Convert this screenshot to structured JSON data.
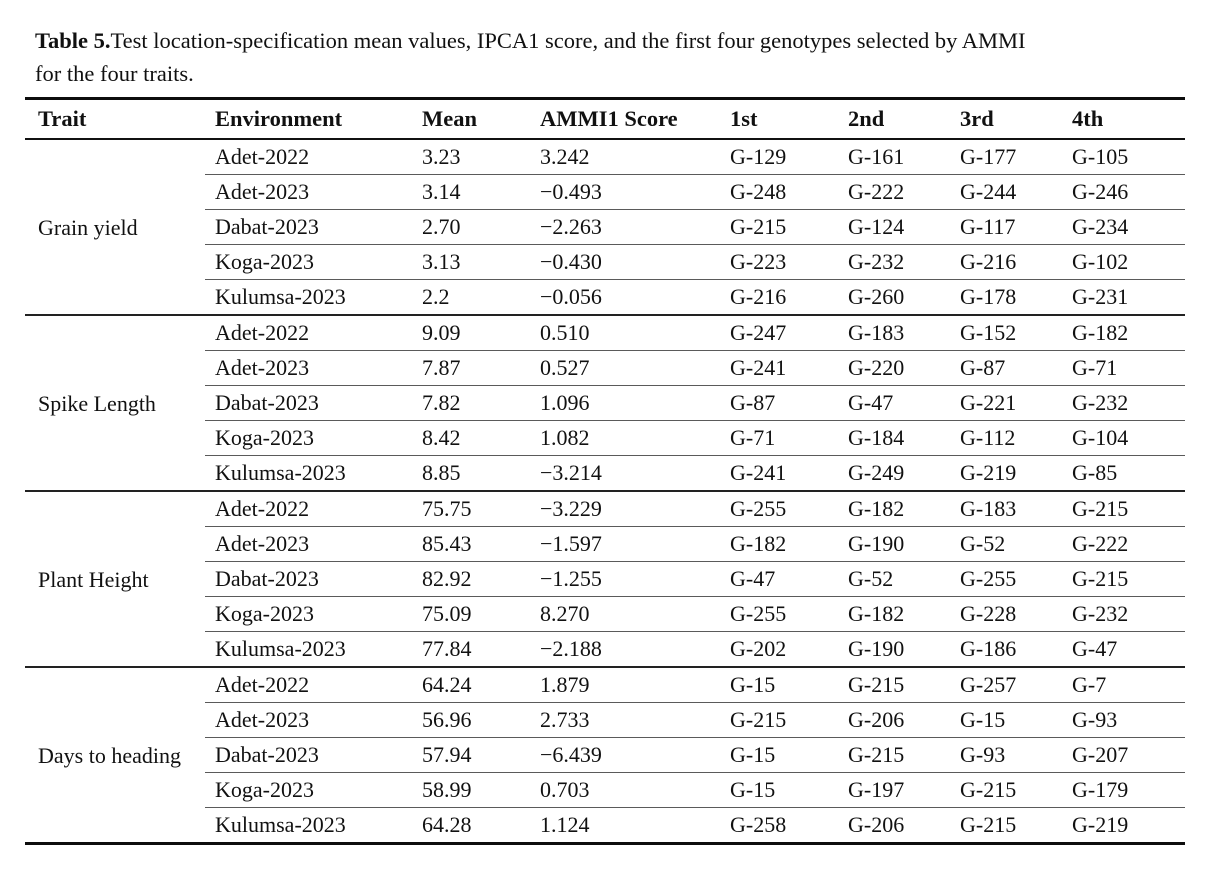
{
  "caption": {
    "label": "Table 5.",
    "line1": "Test location-specification mean values, IPCA1 score, and the first four genotypes selected by AMMI",
    "line2": "for the four traits."
  },
  "table": {
    "columns": [
      "Trait",
      "Environment",
      "Mean",
      "AMMI1 Score",
      "1st",
      "2nd",
      "3rd",
      "4th"
    ],
    "groups": [
      {
        "trait": "Grain yield",
        "rows": [
          {
            "env": "Adet-2022",
            "mean": "3.23",
            "ammi1": "3.242",
            "g1": "G-129",
            "g2": "G-161",
            "g3": "G-177",
            "g4": "G-105"
          },
          {
            "env": "Adet-2023",
            "mean": "3.14",
            "ammi1": "−0.493",
            "g1": "G-248",
            "g2": "G-222",
            "g3": "G-244",
            "g4": "G-246"
          },
          {
            "env": "Dabat-2023",
            "mean": "2.70",
            "ammi1": "−2.263",
            "g1": "G-215",
            "g2": "G-124",
            "g3": "G-117",
            "g4": "G-234"
          },
          {
            "env": "Koga-2023",
            "mean": "3.13",
            "ammi1": "−0.430",
            "g1": "G-223",
            "g2": "G-232",
            "g3": "G-216",
            "g4": "G-102"
          },
          {
            "env": "Kulumsa-2023",
            "mean": "2.2",
            "ammi1": "−0.056",
            "g1": "G-216",
            "g2": "G-260",
            "g3": "G-178",
            "g4": "G-231"
          }
        ]
      },
      {
        "trait": "Spike Length",
        "rows": [
          {
            "env": "Adet-2022",
            "mean": "9.09",
            "ammi1": "0.510",
            "g1": "G-247",
            "g2": "G-183",
            "g3": "G-152",
            "g4": "G-182"
          },
          {
            "env": "Adet-2023",
            "mean": "7.87",
            "ammi1": "0.527",
            "g1": "G-241",
            "g2": "G-220",
            "g3": "G-87",
            "g4": "G-71"
          },
          {
            "env": "Dabat-2023",
            "mean": "7.82",
            "ammi1": "1.096",
            "g1": "G-87",
            "g2": "G-47",
            "g3": "G-221",
            "g4": "G-232"
          },
          {
            "env": "Koga-2023",
            "mean": "8.42",
            "ammi1": "1.082",
            "g1": "G-71",
            "g2": "G-184",
            "g3": "G-112",
            "g4": "G-104"
          },
          {
            "env": "Kulumsa-2023",
            "mean": "8.85",
            "ammi1": "−3.214",
            "g1": "G-241",
            "g2": "G-249",
            "g3": "G-219",
            "g4": "G-85"
          }
        ]
      },
      {
        "trait": "Plant Height",
        "rows": [
          {
            "env": "Adet-2022",
            "mean": "75.75",
            "ammi1": "−3.229",
            "g1": "G-255",
            "g2": "G-182",
            "g3": "G-183",
            "g4": "G-215"
          },
          {
            "env": "Adet-2023",
            "mean": "85.43",
            "ammi1": "−1.597",
            "g1": "G-182",
            "g2": "G-190",
            "g3": "G-52",
            "g4": "G-222"
          },
          {
            "env": "Dabat-2023",
            "mean": "82.92",
            "ammi1": "−1.255",
            "g1": "G-47",
            "g2": "G-52",
            "g3": "G-255",
            "g4": "G-215"
          },
          {
            "env": "Koga-2023",
            "mean": "75.09",
            "ammi1": "8.270",
            "g1": "G-255",
            "g2": "G-182",
            "g3": "G-228",
            "g4": "G-232"
          },
          {
            "env": "Kulumsa-2023",
            "mean": "77.84",
            "ammi1": "−2.188",
            "g1": "G-202",
            "g2": "G-190",
            "g3": "G-186",
            "g4": "G-47"
          }
        ]
      },
      {
        "trait": "Days to heading",
        "rows": [
          {
            "env": "Adet-2022",
            "mean": "64.24",
            "ammi1": "1.879",
            "g1": "G-15",
            "g2": "G-215",
            "g3": "G-257",
            "g4": "G-7"
          },
          {
            "env": "Adet-2023",
            "mean": "56.96",
            "ammi1": "2.733",
            "g1": "G-215",
            "g2": "G-206",
            "g3": "G-15",
            "g4": "G-93"
          },
          {
            "env": "Dabat-2023",
            "mean": "57.94",
            "ammi1": "−6.439",
            "g1": "G-15",
            "g2": "G-215",
            "g3": "G-93",
            "g4": "G-207"
          },
          {
            "env": "Koga-2023",
            "mean": "58.99",
            "ammi1": "0.703",
            "g1": "G-15",
            "g2": "G-197",
            "g3": "G-215",
            "g4": "G-179"
          },
          {
            "env": "Kulumsa-2023",
            "mean": "64.28",
            "ammi1": "1.124",
            "g1": "G-258",
            "g2": "G-206",
            "g3": "G-215",
            "g4": "G-219"
          }
        ]
      }
    ]
  }
}
